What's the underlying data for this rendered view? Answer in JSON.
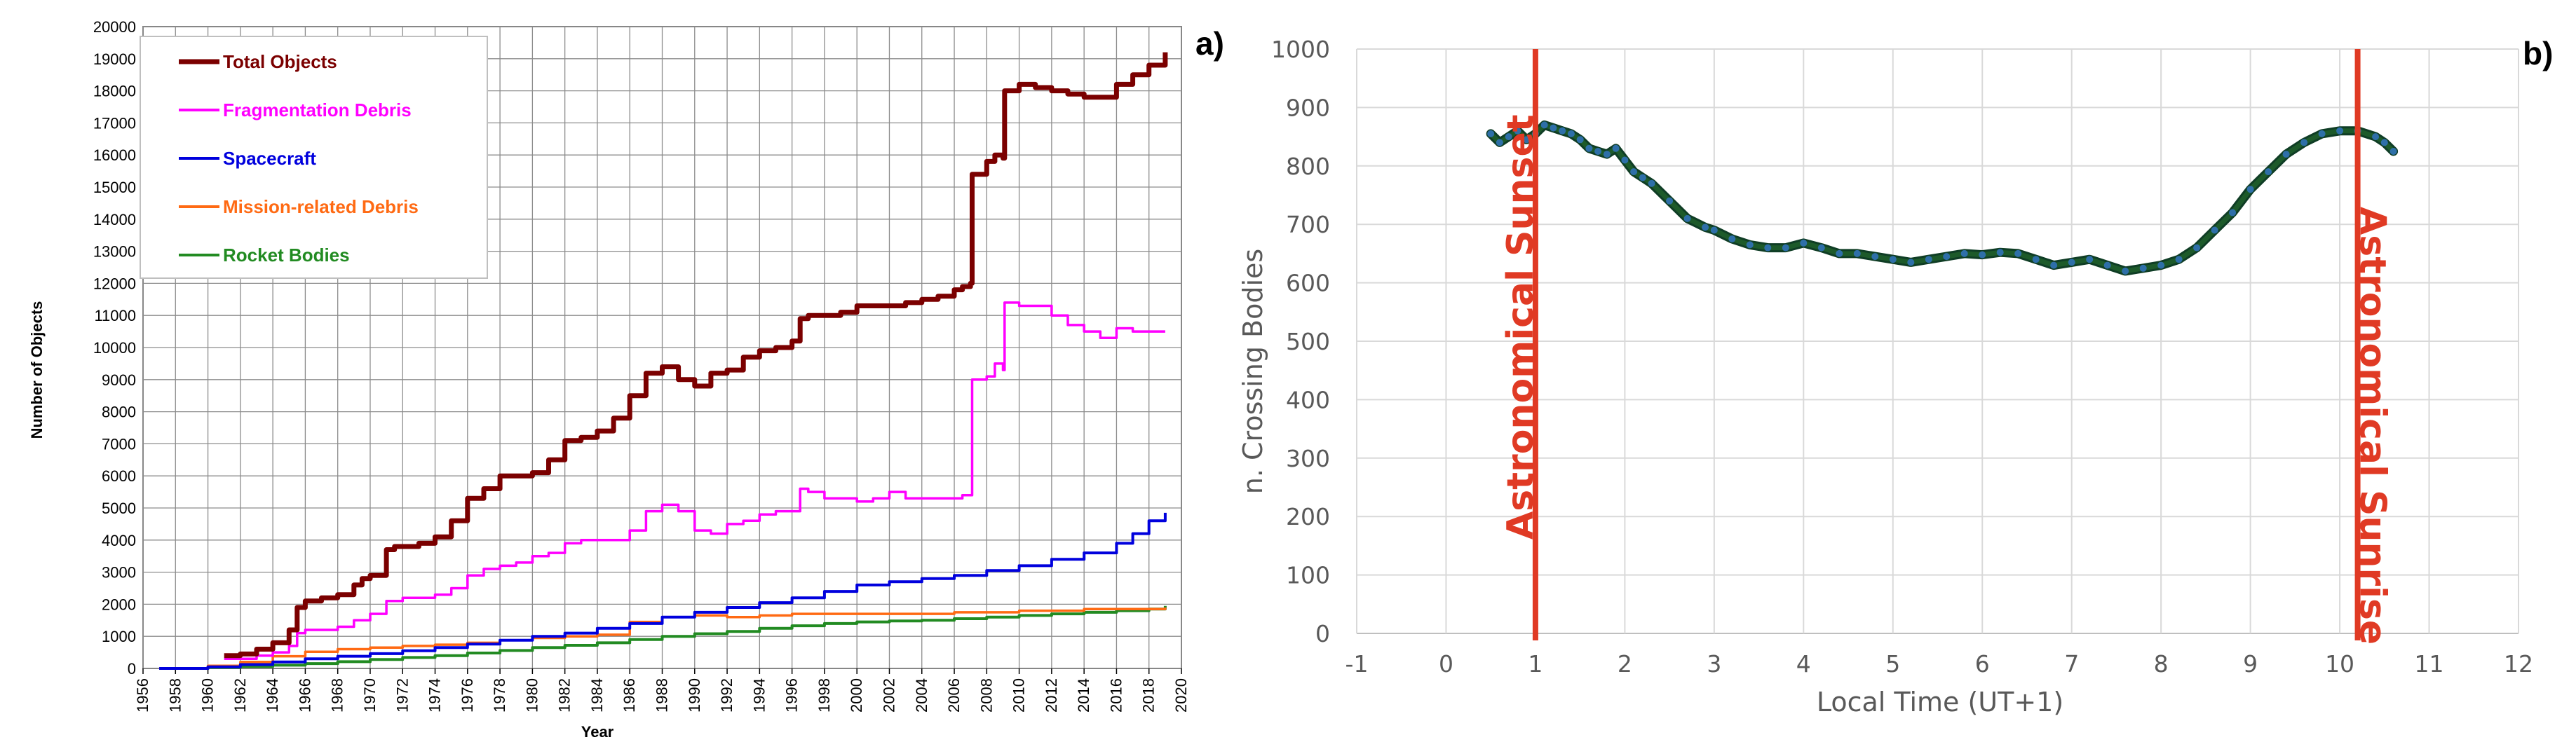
{
  "chart_data": [
    {
      "type": "line",
      "panel_label": "a)",
      "xlabel": "Year",
      "ylabel": "Number of Objects",
      "xlim": [
        1956,
        2020
      ],
      "ylim": [
        0,
        20000
      ],
      "x_ticks": [
        "1956",
        "1958",
        "1960",
        "1962",
        "1964",
        "1966",
        "1968",
        "1970",
        "1972",
        "1974",
        "1976",
        "1978",
        "1980",
        "1982",
        "1984",
        "1986",
        "1988",
        "1990",
        "1992",
        "1994",
        "1996",
        "1998",
        "2000",
        "2002",
        "2004",
        "2006",
        "2008",
        "2010",
        "2012",
        "2014",
        "2016",
        "2018",
        "2020"
      ],
      "y_ticks": [
        "0",
        "1000",
        "2000",
        "3000",
        "4000",
        "5000",
        "6000",
        "7000",
        "8000",
        "9000",
        "10000",
        "11000",
        "12000",
        "13000",
        "14000",
        "15000",
        "16000",
        "17000",
        "18000",
        "19000",
        "20000"
      ],
      "grid": true,
      "legend_position": "top-left",
      "series": [
        {
          "name": "Total Objects",
          "color": "#7b0000",
          "x": [
            1961.0,
            1962.0,
            1963.0,
            1964.0,
            1965.0,
            1965.5,
            1966.0,
            1967.0,
            1968.0,
            1969.0,
            1969.5,
            1970.0,
            1971.0,
            1971.5,
            1972.0,
            1973.0,
            1974.0,
            1975.0,
            1976.0,
            1977.0,
            1978.0,
            1979.0,
            1980.0,
            1981.0,
            1982.0,
            1983.0,
            1984.0,
            1985.0,
            1986.0,
            1987.0,
            1988.0,
            1989.0,
            1990.0,
            1991.0,
            1992.0,
            1993.0,
            1994.0,
            1995.0,
            1996.0,
            1996.5,
            1997.0,
            1998.0,
            1999.0,
            2000.0,
            2001.0,
            2002.0,
            2003.0,
            2004.0,
            2005.0,
            2006.0,
            2006.5,
            2007.0,
            2007.1,
            2008.0,
            2008.5,
            2009.0,
            2009.1,
            2010.0,
            2011.0,
            2012.0,
            2013.0,
            2014.0,
            2015.0,
            2016.0,
            2017.0,
            2018.0,
            2019.0
          ],
          "values": [
            400,
            450,
            600,
            800,
            1200,
            1900,
            2100,
            2200,
            2300,
            2600,
            2800,
            2900,
            3700,
            3800,
            3800,
            3900,
            4100,
            4600,
            5300,
            5600,
            6000,
            6000,
            6100,
            6500,
            7100,
            7200,
            7400,
            7800,
            8500,
            9200,
            9400,
            9000,
            8800,
            9200,
            9300,
            9700,
            9900,
            10000,
            10200,
            10900,
            11000,
            11000,
            11100,
            11300,
            11300,
            11300,
            11400,
            11500,
            11600,
            11800,
            11900,
            12000,
            15400,
            15800,
            16000,
            15900,
            18000,
            18200,
            18100,
            18000,
            17900,
            17800,
            17800,
            18200,
            18500,
            18800,
            19200
          ]
        },
        {
          "name": "Fragmentation Debris",
          "color": "#ff00ff",
          "x": [
            1961.0,
            1962.0,
            1963.0,
            1964.0,
            1965.0,
            1965.5,
            1966.0,
            1967.0,
            1968.0,
            1969.0,
            1970.0,
            1971.0,
            1972.0,
            1973.0,
            1974.0,
            1975.0,
            1976.0,
            1977.0,
            1978.0,
            1979.0,
            1980.0,
            1981.0,
            1982.0,
            1983.0,
            1984.0,
            1985.0,
            1986.0,
            1987.0,
            1988.0,
            1989.0,
            1990.0,
            1991.0,
            1992.0,
            1993.0,
            1994.0,
            1995.0,
            1996.0,
            1996.5,
            1997.0,
            1998.0,
            1999.0,
            2000.0,
            2001.0,
            2002.0,
            2003.0,
            2004.0,
            2005.0,
            2006.0,
            2006.5,
            2007.0,
            2007.1,
            2008.0,
            2008.5,
            2009.0,
            2009.1,
            2010.0,
            2011.0,
            2012.0,
            2013.0,
            2014.0,
            2015.0,
            2016.0,
            2017.0,
            2018.0,
            2019.0
          ],
          "values": [
            300,
            300,
            400,
            500,
            700,
            1100,
            1200,
            1200,
            1300,
            1500,
            1700,
            2100,
            2200,
            2200,
            2300,
            2500,
            2900,
            3100,
            3200,
            3300,
            3500,
            3600,
            3900,
            4000,
            4000,
            4000,
            4300,
            4900,
            5100,
            4900,
            4300,
            4200,
            4500,
            4600,
            4800,
            4900,
            4900,
            5600,
            5500,
            5300,
            5300,
            5200,
            5300,
            5500,
            5300,
            5300,
            5300,
            5300,
            5400,
            5400,
            9000,
            9100,
            9500,
            9300,
            11400,
            11300,
            11300,
            11000,
            10700,
            10500,
            10300,
            10600,
            10500,
            10500,
            10500
          ]
        },
        {
          "name": "Spacecraft",
          "color": "#0000dd",
          "x": [
            1957.0,
            1960.0,
            1962.0,
            1964.0,
            1966.0,
            1968.0,
            1970.0,
            1972.0,
            1974.0,
            1976.0,
            1978.0,
            1980.0,
            1982.0,
            1984.0,
            1986.0,
            1988.0,
            1990.0,
            1992.0,
            1994.0,
            1996.0,
            1998.0,
            2000.0,
            2002.0,
            2004.0,
            2006.0,
            2008.0,
            2010.0,
            2012.0,
            2014.0,
            2016.0,
            2017.0,
            2018.0,
            2019.0
          ],
          "values": [
            0,
            50,
            120,
            200,
            300,
            380,
            460,
            550,
            650,
            760,
            880,
            1000,
            1100,
            1250,
            1400,
            1600,
            1750,
            1900,
            2050,
            2200,
            2400,
            2600,
            2700,
            2800,
            2900,
            3050,
            3200,
            3400,
            3600,
            3900,
            4200,
            4600,
            4850
          ]
        },
        {
          "name": "Mission-related Debris",
          "color": "#ff6a13",
          "x": [
            1957.0,
            1960.0,
            1962.0,
            1964.0,
            1966.0,
            1968.0,
            1970.0,
            1972.0,
            1974.0,
            1976.0,
            1978.0,
            1980.0,
            1982.0,
            1984.0,
            1986.0,
            1988.0,
            1990.0,
            1992.0,
            1994.0,
            1996.0,
            1998.0,
            2000.0,
            2002.0,
            2004.0,
            2006.0,
            2008.0,
            2010.0,
            2012.0,
            2014.0,
            2016.0,
            2018.0,
            2019.0
          ],
          "values": [
            0,
            80,
            200,
            380,
            520,
            600,
            650,
            700,
            740,
            800,
            880,
            950,
            1000,
            1050,
            1450,
            1600,
            1650,
            1600,
            1650,
            1700,
            1700,
            1700,
            1700,
            1700,
            1750,
            1750,
            1800,
            1800,
            1850,
            1850,
            1850,
            1900
          ]
        },
        {
          "name": "Rocket Bodies",
          "color": "#228b22",
          "x": [
            1957.0,
            1960.0,
            1962.0,
            1964.0,
            1966.0,
            1968.0,
            1970.0,
            1972.0,
            1974.0,
            1976.0,
            1978.0,
            1980.0,
            1982.0,
            1984.0,
            1986.0,
            1988.0,
            1990.0,
            1992.0,
            1994.0,
            1996.0,
            1998.0,
            2000.0,
            2002.0,
            2004.0,
            2006.0,
            2008.0,
            2010.0,
            2012.0,
            2014.0,
            2016.0,
            2018.0,
            2019.0
          ],
          "values": [
            0,
            30,
            60,
            100,
            150,
            210,
            280,
            340,
            400,
            480,
            560,
            650,
            720,
            800,
            900,
            1000,
            1080,
            1150,
            1250,
            1330,
            1400,
            1450,
            1480,
            1500,
            1550,
            1600,
            1650,
            1700,
            1750,
            1800,
            1850,
            1950
          ]
        }
      ]
    },
    {
      "type": "line",
      "panel_label": "b)",
      "xlabel": "Local Time (UT+1)",
      "ylabel": "n. Crossing Bodies",
      "xlim": [
        -1,
        12
      ],
      "ylim": [
        0,
        1000
      ],
      "x_ticks": [
        "-1",
        "0",
        "1",
        "2",
        "3",
        "4",
        "5",
        "6",
        "7",
        "8",
        "9",
        "10",
        "11",
        "12"
      ],
      "y_ticks": [
        "0",
        "100",
        "200",
        "300",
        "400",
        "500",
        "600",
        "700",
        "800",
        "900",
        "1000"
      ],
      "grid": true,
      "series": [
        {
          "color": "#1d5a2a",
          "x": [
            0.5,
            0.6,
            0.7,
            0.8,
            0.9,
            1.0,
            1.1,
            1.2,
            1.3,
            1.4,
            1.5,
            1.6,
            1.7,
            1.8,
            1.9,
            2.0,
            2.1,
            2.2,
            2.3,
            2.5,
            2.7,
            2.9,
            3.0,
            3.2,
            3.4,
            3.6,
            3.8,
            4.0,
            4.2,
            4.4,
            4.6,
            4.8,
            5.0,
            5.2,
            5.4,
            5.6,
            5.8,
            6.0,
            6.2,
            6.4,
            6.6,
            6.8,
            7.0,
            7.2,
            7.4,
            7.6,
            7.8,
            8.0,
            8.2,
            8.4,
            8.6,
            8.8,
            9.0,
            9.2,
            9.4,
            9.6,
            9.8,
            10.0,
            10.2,
            10.4,
            10.5,
            10.6
          ],
          "values": [
            855,
            840,
            850,
            860,
            845,
            855,
            870,
            865,
            860,
            855,
            845,
            830,
            825,
            820,
            830,
            810,
            790,
            780,
            770,
            740,
            710,
            695,
            690,
            675,
            665,
            660,
            660,
            668,
            660,
            650,
            650,
            645,
            640,
            635,
            640,
            645,
            650,
            648,
            652,
            650,
            640,
            630,
            635,
            640,
            630,
            620,
            625,
            630,
            640,
            660,
            690,
            720,
            760,
            790,
            820,
            840,
            855,
            860,
            860,
            850,
            840,
            825
          ]
        }
      ],
      "annotations": [
        {
          "label": "Astronomical Sunset",
          "x": 1.0,
          "color": "#e03a24"
        },
        {
          "label": "Astronomical Sunrise",
          "x": 10.2,
          "color": "#e03a24"
        }
      ]
    }
  ]
}
